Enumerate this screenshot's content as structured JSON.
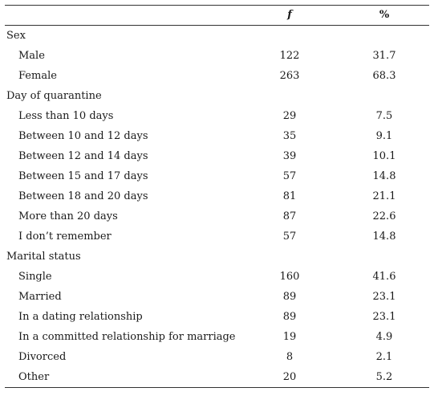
{
  "table": {
    "headers": {
      "label": "",
      "f": "f",
      "percent": "%"
    },
    "groups": [
      {
        "name": "Sex",
        "rows": [
          {
            "label": "Male",
            "f": "122",
            "percent": "31.7"
          },
          {
            "label": "Female",
            "f": "263",
            "percent": "68.3"
          }
        ]
      },
      {
        "name": "Day of quarantine",
        "rows": [
          {
            "label": "Less than 10 days",
            "f": "29",
            "percent": "7.5"
          },
          {
            "label": "Between 10 and 12 days",
            "f": "35",
            "percent": "9.1"
          },
          {
            "label": "Between 12 and 14 days",
            "f": "39",
            "percent": "10.1"
          },
          {
            "label": "Between 15 and 17 days",
            "f": "57",
            "percent": "14.8"
          },
          {
            "label": "Between 18 and 20 days",
            "f": "81",
            "percent": "21.1"
          },
          {
            "label": "More than 20 days",
            "f": "87",
            "percent": "22.6"
          },
          {
            "label": "I don’t remember",
            "f": "57",
            "percent": "14.8"
          }
        ]
      },
      {
        "name": "Marital status",
        "rows": [
          {
            "label": "Single",
            "f": "160",
            "percent": "41.6"
          },
          {
            "label": "Married",
            "f": "89",
            "percent": "23.1"
          },
          {
            "label": "In a dating relationship",
            "f": "89",
            "percent": "23.1"
          },
          {
            "label": "In a committed relationship for marriage",
            "f": "19",
            "percent": "4.9"
          },
          {
            "label": "Divorced",
            "f": "8",
            "percent": "2.1"
          },
          {
            "label": "Other",
            "f": "20",
            "percent": "5.2"
          }
        ]
      }
    ]
  }
}
